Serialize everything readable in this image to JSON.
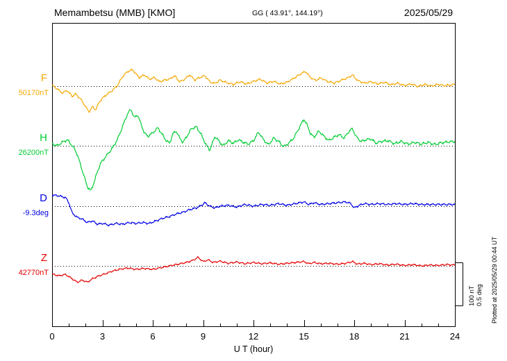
{
  "header": {
    "station": "Memambetsu (MMB)  [KMO]",
    "coords": "GG ( 43.91°, 144.19°)",
    "date": "2025/05/29"
  },
  "axis": {
    "x_label": "U T (hour)"
  },
  "scale_bar": {
    "line1": "100 nT",
    "line2": "0.5 deg"
  },
  "footer": {
    "plotted_at": "Plotted at 2025/05/29 00:44 UT"
  },
  "chart_data": {
    "type": "line",
    "title": "Memambetsu (MMB) [KMO] magnetogram",
    "x_unit": "hour",
    "x_range": [
      0,
      24
    ],
    "x_ticks": [
      0,
      3,
      6,
      9,
      12,
      15,
      18,
      21,
      24
    ],
    "scale": {
      "bar_nT": 100,
      "bar_deg": 0.5
    },
    "grid": "dotted horizontal baseline per trace",
    "series": [
      {
        "name": "F",
        "label": "F",
        "value_label": "50170nT",
        "unit": "nT",
        "color": "#f5a800",
        "texture_amp": 3,
        "points": [
          [
            0,
            2
          ],
          [
            0.3,
            -6
          ],
          [
            0.6,
            -16
          ],
          [
            0.9,
            -10
          ],
          [
            1.2,
            -24
          ],
          [
            1.4,
            -18
          ],
          [
            1.7,
            -30
          ],
          [
            2.0,
            -48
          ],
          [
            2.2,
            -60
          ],
          [
            2.4,
            -48
          ],
          [
            2.6,
            -55
          ],
          [
            2.8,
            -38
          ],
          [
            3.0,
            -28
          ],
          [
            3.3,
            -18
          ],
          [
            3.6,
            -10
          ],
          [
            3.9,
            2
          ],
          [
            4.2,
            22
          ],
          [
            4.5,
            34
          ],
          [
            4.8,
            38
          ],
          [
            5.0,
            28
          ],
          [
            5.2,
            20
          ],
          [
            5.5,
            26
          ],
          [
            5.8,
            16
          ],
          [
            6.1,
            20
          ],
          [
            6.4,
            10
          ],
          [
            6.7,
            14
          ],
          [
            7.0,
            16
          ],
          [
            7.3,
            24
          ],
          [
            7.6,
            10
          ],
          [
            7.9,
            16
          ],
          [
            8.2,
            26
          ],
          [
            8.5,
            14
          ],
          [
            8.8,
            20
          ],
          [
            9.1,
            24
          ],
          [
            9.4,
            10
          ],
          [
            9.7,
            6
          ],
          [
            10.0,
            14
          ],
          [
            10.4,
            8
          ],
          [
            10.8,
            4
          ],
          [
            11.2,
            10
          ],
          [
            11.6,
            5
          ],
          [
            12.0,
            11
          ],
          [
            12.4,
            16
          ],
          [
            12.8,
            7
          ],
          [
            13.2,
            11
          ],
          [
            13.6,
            5
          ],
          [
            14.0,
            9
          ],
          [
            14.4,
            18
          ],
          [
            14.8,
            28
          ],
          [
            15.1,
            34
          ],
          [
            15.4,
            20
          ],
          [
            15.7,
            13
          ],
          [
            16.0,
            19
          ],
          [
            16.4,
            11
          ],
          [
            16.8,
            7
          ],
          [
            17.2,
            13
          ],
          [
            17.6,
            19
          ],
          [
            17.9,
            26
          ],
          [
            18.2,
            13
          ],
          [
            18.6,
            7
          ],
          [
            19.0,
            10
          ],
          [
            19.4,
            5
          ],
          [
            19.8,
            9
          ],
          [
            20.2,
            3
          ],
          [
            20.6,
            7
          ],
          [
            21.0,
            1
          ],
          [
            21.4,
            5
          ],
          [
            21.8,
            -1
          ],
          [
            22.2,
            4
          ],
          [
            22.6,
            0
          ],
          [
            23.0,
            4
          ],
          [
            23.4,
            1
          ],
          [
            23.8,
            3
          ],
          [
            24,
            4
          ]
        ]
      },
      {
        "name": "H",
        "label": "H",
        "value_label": "26200nT",
        "unit": "nT",
        "color": "#00cc33",
        "texture_amp": 4,
        "points": [
          [
            0,
            5
          ],
          [
            0.3,
            0
          ],
          [
            0.6,
            8
          ],
          [
            0.9,
            14
          ],
          [
            1.1,
            5
          ],
          [
            1.3,
            -5
          ],
          [
            1.5,
            -20
          ],
          [
            1.7,
            -45
          ],
          [
            1.9,
            -70
          ],
          [
            2.1,
            -95
          ],
          [
            2.3,
            -105
          ],
          [
            2.5,
            -85
          ],
          [
            2.7,
            -60
          ],
          [
            2.9,
            -40
          ],
          [
            3.1,
            -30
          ],
          [
            3.3,
            -20
          ],
          [
            3.6,
            -5
          ],
          [
            3.9,
            15
          ],
          [
            4.2,
            45
          ],
          [
            4.5,
            75
          ],
          [
            4.7,
            85
          ],
          [
            4.9,
            65
          ],
          [
            5.1,
            72
          ],
          [
            5.3,
            50
          ],
          [
            5.5,
            30
          ],
          [
            5.7,
            22
          ],
          [
            6.0,
            30
          ],
          [
            6.3,
            42
          ],
          [
            6.5,
            30
          ],
          [
            6.8,
            12
          ],
          [
            7.0,
            6
          ],
          [
            7.2,
            28
          ],
          [
            7.4,
            34
          ],
          [
            7.6,
            18
          ],
          [
            7.8,
            8
          ],
          [
            8.0,
            20
          ],
          [
            8.3,
            40
          ],
          [
            8.6,
            44
          ],
          [
            8.9,
            25
          ],
          [
            9.2,
            0
          ],
          [
            9.4,
            -10
          ],
          [
            9.7,
            22
          ],
          [
            10.0,
            8
          ],
          [
            10.2,
            0
          ],
          [
            10.5,
            12
          ],
          [
            10.8,
            6
          ],
          [
            11.1,
            14
          ],
          [
            11.4,
            8
          ],
          [
            11.7,
            4
          ],
          [
            12.0,
            12
          ],
          [
            12.3,
            32
          ],
          [
            12.6,
            14
          ],
          [
            12.9,
            2
          ],
          [
            13.2,
            18
          ],
          [
            13.5,
            10
          ],
          [
            13.8,
            -2
          ],
          [
            14.1,
            6
          ],
          [
            14.4,
            18
          ],
          [
            14.7,
            40
          ],
          [
            15.0,
            62
          ],
          [
            15.2,
            48
          ],
          [
            15.4,
            28
          ],
          [
            15.6,
            20
          ],
          [
            15.9,
            34
          ],
          [
            16.2,
            22
          ],
          [
            16.5,
            12
          ],
          [
            16.8,
            20
          ],
          [
            17.1,
            26
          ],
          [
            17.4,
            18
          ],
          [
            17.7,
            34
          ],
          [
            17.9,
            40
          ],
          [
            18.1,
            22
          ],
          [
            18.4,
            10
          ],
          [
            18.7,
            14
          ],
          [
            19.0,
            16
          ],
          [
            19.3,
            6
          ],
          [
            19.6,
            10
          ],
          [
            20.0,
            12
          ],
          [
            20.4,
            5
          ],
          [
            20.8,
            10
          ],
          [
            21.2,
            4
          ],
          [
            21.6,
            8
          ],
          [
            22.0,
            4
          ],
          [
            22.4,
            8
          ],
          [
            22.8,
            3
          ],
          [
            23.2,
            7
          ],
          [
            23.6,
            9
          ],
          [
            24,
            10
          ]
        ]
      },
      {
        "name": "D",
        "label": "D",
        "value_label": "-9.3deg",
        "unit": "deg",
        "color": "#0000e6",
        "texture_amp": 0.015,
        "points": [
          [
            0,
            0.13
          ],
          [
            0.4,
            0.12
          ],
          [
            0.8,
            0.1
          ],
          [
            1.0,
            0.04
          ],
          [
            1.2,
            -0.08
          ],
          [
            1.5,
            -0.13
          ],
          [
            1.8,
            -0.15
          ],
          [
            2.1,
            -0.19
          ],
          [
            2.4,
            -0.17
          ],
          [
            2.7,
            -0.21
          ],
          [
            3.0,
            -0.2
          ],
          [
            3.4,
            -0.22
          ],
          [
            3.8,
            -0.2
          ],
          [
            4.2,
            -0.21
          ],
          [
            4.6,
            -0.19
          ],
          [
            5.0,
            -0.2
          ],
          [
            5.4,
            -0.19
          ],
          [
            5.8,
            -0.2
          ],
          [
            6.2,
            -0.17
          ],
          [
            6.6,
            -0.14
          ],
          [
            7.0,
            -0.12
          ],
          [
            7.4,
            -0.09
          ],
          [
            7.8,
            -0.07
          ],
          [
            8.2,
            -0.04
          ],
          [
            8.6,
            -0.02
          ],
          [
            8.9,
            0.01
          ],
          [
            9.1,
            0.04
          ],
          [
            9.4,
            0.0
          ],
          [
            9.7,
            -0.02
          ],
          [
            10.0,
            0.0
          ],
          [
            10.5,
            0.01
          ],
          [
            11.0,
            -0.01
          ],
          [
            11.5,
            0.02
          ],
          [
            12.0,
            0.0
          ],
          [
            12.5,
            0.02
          ],
          [
            13.0,
            0.01
          ],
          [
            13.5,
            0.03
          ],
          [
            14.0,
            0.01
          ],
          [
            14.5,
            0.03
          ],
          [
            15.0,
            0.05
          ],
          [
            15.3,
            0.02
          ],
          [
            15.6,
            0.04
          ],
          [
            16.0,
            0.02
          ],
          [
            16.5,
            0.03
          ],
          [
            17.0,
            0.04
          ],
          [
            17.5,
            0.05
          ],
          [
            17.8,
            0.03
          ],
          [
            18.0,
            -0.02
          ],
          [
            18.3,
            0.01
          ],
          [
            18.6,
            0.03
          ],
          [
            19.0,
            0.02
          ],
          [
            19.5,
            0.03
          ],
          [
            20.0,
            0.02
          ],
          [
            20.5,
            0.03
          ],
          [
            21.0,
            0.02
          ],
          [
            21.5,
            0.03
          ],
          [
            22.0,
            0.02
          ],
          [
            22.5,
            0.02
          ],
          [
            23.0,
            0.02
          ],
          [
            23.5,
            0.02
          ],
          [
            24,
            0.02
          ]
        ]
      },
      {
        "name": "Z",
        "label": "Z",
        "value_label": "42770nT",
        "unit": "nT",
        "color": "#e60000",
        "texture_amp": 2.5,
        "points": [
          [
            0,
            -19
          ],
          [
            0.4,
            -23
          ],
          [
            0.8,
            -20
          ],
          [
            1.2,
            -30
          ],
          [
            1.5,
            -38
          ],
          [
            1.8,
            -33
          ],
          [
            2.1,
            -38
          ],
          [
            2.4,
            -30
          ],
          [
            2.8,
            -23
          ],
          [
            3.2,
            -18
          ],
          [
            3.6,
            -12
          ],
          [
            4.0,
            -8
          ],
          [
            4.5,
            -5
          ],
          [
            5.0,
            -8
          ],
          [
            5.5,
            -6
          ],
          [
            6.0,
            -8
          ],
          [
            6.5,
            -4
          ],
          [
            7.0,
            0
          ],
          [
            7.5,
            4
          ],
          [
            8.0,
            8
          ],
          [
            8.4,
            13
          ],
          [
            8.7,
            20
          ],
          [
            9.0,
            10
          ],
          [
            9.3,
            14
          ],
          [
            9.6,
            8
          ],
          [
            10.0,
            11
          ],
          [
            10.5,
            6
          ],
          [
            11.0,
            9
          ],
          [
            11.5,
            5
          ],
          [
            12.0,
            8
          ],
          [
            12.5,
            5
          ],
          [
            13.0,
            7
          ],
          [
            13.5,
            4
          ],
          [
            14.0,
            6
          ],
          [
            14.5,
            8
          ],
          [
            15.0,
            10
          ],
          [
            15.3,
            5
          ],
          [
            15.6,
            8
          ],
          [
            16.0,
            5
          ],
          [
            16.5,
            6
          ],
          [
            17.0,
            4
          ],
          [
            17.5,
            6
          ],
          [
            17.9,
            10
          ],
          [
            18.2,
            4
          ],
          [
            18.6,
            6
          ],
          [
            19.0,
            3
          ],
          [
            19.5,
            5
          ],
          [
            20.0,
            2
          ],
          [
            20.5,
            4
          ],
          [
            21.0,
            1
          ],
          [
            21.5,
            3
          ],
          [
            22.0,
            0
          ],
          [
            22.5,
            2
          ],
          [
            23.0,
            1
          ],
          [
            23.5,
            3
          ],
          [
            24,
            2
          ]
        ]
      }
    ]
  }
}
